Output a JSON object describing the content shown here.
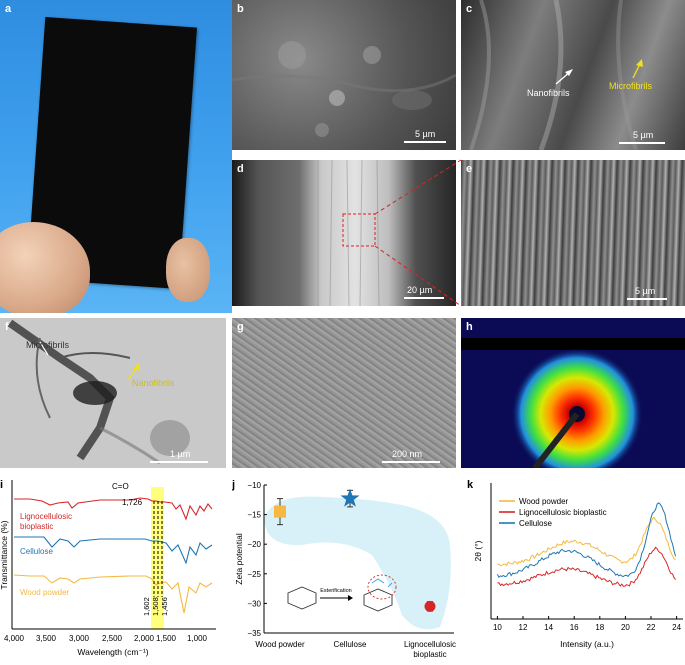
{
  "panels": {
    "a": {
      "label": "a"
    },
    "b": {
      "label": "b",
      "scale": "5 µm"
    },
    "c": {
      "label": "c",
      "scale": "5 µm",
      "ann_nano": "Nanofibrils",
      "ann_micro": "Microfibrils"
    },
    "d": {
      "label": "d",
      "scale": "20 µm"
    },
    "e": {
      "label": "e",
      "scale": "5 µm"
    },
    "f": {
      "label": "f",
      "scale": "1 µm",
      "ann_micro": "Microfibrils",
      "ann_nano": "Nanofibrils"
    },
    "g": {
      "label": "g",
      "scale": "200 nm"
    },
    "h": {
      "label": "h"
    }
  },
  "colors": {
    "lignocellulosic": "#d62728",
    "cellulose": "#1f77b4",
    "wood": "#f5b942",
    "highlight": "#ffff66",
    "shade": "#d8f1f8"
  },
  "ftir": {
    "label": "i",
    "ylabel": "Transmittance (%)",
    "xlabel": "Wavelength (cm⁻¹)",
    "xticks": [
      "4,000",
      "3,500",
      "3,000",
      "2,500",
      "2,000",
      "1,500",
      "1,000"
    ],
    "series_labels": {
      "lig1": "Lignocellulosic",
      "lig2": "bioplastic",
      "cell": "Cellulose",
      "wood": "Wood powder"
    },
    "ann_co": "C=O",
    "ann_1726": "1,726",
    "ann_1602": "1,602",
    "ann_1508": "1,508",
    "ann_1456": "1,456"
  },
  "chart_data": [
    {
      "type": "scatter",
      "label": "j",
      "ylabel": "Zeta potential",
      "categories": [
        "Wood powder",
        "Cellulose",
        "Lignocellulosic bioplastic"
      ],
      "category_lines": [
        [
          "Wood powder"
        ],
        [
          "Cellulose"
        ],
        [
          "Lignocellulosic",
          "bioplastic"
        ]
      ],
      "values": [
        -14.5,
        -12.3,
        -30.5
      ],
      "errors": [
        2.2,
        1.4,
        0.8
      ],
      "markers": [
        "square",
        "star",
        "circle"
      ],
      "ylim": [
        -35,
        -10
      ],
      "yticks": [
        -10,
        -15,
        -20,
        -25,
        -30,
        -35
      ],
      "ann_reaction": "Esterification"
    },
    {
      "type": "line",
      "label": "k",
      "ylabel": "2θ (°)",
      "xlabel": "Intensity (a.u.)",
      "xlim": [
        9.5,
        24.5
      ],
      "xticks": [
        10,
        12,
        14,
        16,
        18,
        20,
        22,
        24
      ],
      "series": [
        {
          "name": "Wood powder",
          "peaks": [
            [
              16.0,
              0.32
            ],
            [
              22.3,
              0.62
            ]
          ],
          "base": 0.5
        },
        {
          "name": "Lignocellulosic bioplastic",
          "peaks": [
            [
              15.5,
              0.22
            ],
            [
              22.4,
              0.5
            ]
          ],
          "base": 0.25
        },
        {
          "name": "Cellulose",
          "peaks": [
            [
              15.5,
              0.35
            ],
            [
              22.6,
              0.95
            ]
          ],
          "base": 0.35
        }
      ]
    }
  ]
}
